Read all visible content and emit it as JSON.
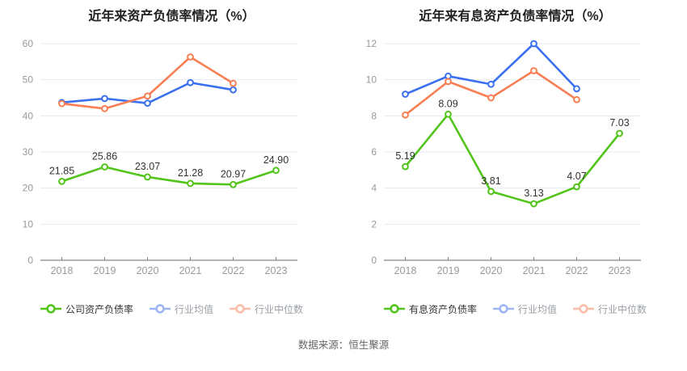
{
  "footer": {
    "source": "数据来源：恒生聚源"
  },
  "colors": {
    "company": "#52c41a",
    "industry_avg": "#3a70f0",
    "industry_median": "#f97e53",
    "grid": "#e4e9f2",
    "axis": "#888888",
    "tick_label": "#999999",
    "data_label": "#333333",
    "title": "#222222"
  },
  "chart_data": [
    {
      "type": "line",
      "title": "近年来资产负债率情况（%）",
      "categories": [
        "2018",
        "2019",
        "2020",
        "2021",
        "2022",
        "2023"
      ],
      "ylim": [
        0,
        60
      ],
      "yticks": [
        0,
        10,
        20,
        30,
        40,
        50,
        60
      ],
      "grid": true,
      "legend_position": "bottom",
      "series": [
        {
          "name": "公司资产负债率",
          "color_key": "company",
          "emphasis": true,
          "values": [
            21.85,
            25.86,
            23.07,
            21.28,
            20.97,
            24.9
          ],
          "labels": [
            "21.85",
            "25.86",
            "23.07",
            "21.28",
            "20.97",
            "24.90"
          ]
        },
        {
          "name": "行业均值",
          "color_key": "industry_avg",
          "emphasis": false,
          "values": [
            43.7,
            44.8,
            43.5,
            49.2,
            47.2,
            null
          ]
        },
        {
          "name": "行业中位数",
          "color_key": "industry_median",
          "emphasis": false,
          "values": [
            43.4,
            42.0,
            45.5,
            56.3,
            49.0,
            null
          ]
        }
      ]
    },
    {
      "type": "line",
      "title": "近年来有息资产负债率情况（%）",
      "categories": [
        "2018",
        "2019",
        "2020",
        "2021",
        "2022",
        "2023"
      ],
      "ylim": [
        0,
        12
      ],
      "yticks": [
        0,
        2,
        4,
        6,
        8,
        10,
        12
      ],
      "grid": true,
      "legend_position": "bottom",
      "series": [
        {
          "name": "有息资产负债率",
          "color_key": "company",
          "emphasis": true,
          "values": [
            5.19,
            8.09,
            3.81,
            3.13,
            4.07,
            7.03
          ],
          "labels": [
            "5.19",
            "8.09",
            "3.81",
            "3.13",
            "4.07",
            "7.03"
          ]
        },
        {
          "name": "行业均值",
          "color_key": "industry_avg",
          "emphasis": false,
          "values": [
            9.2,
            10.2,
            9.75,
            12.0,
            9.5,
            null
          ]
        },
        {
          "name": "行业中位数",
          "color_key": "industry_median",
          "emphasis": false,
          "values": [
            8.05,
            9.9,
            9.0,
            10.5,
            8.9,
            null
          ]
        }
      ]
    }
  ]
}
